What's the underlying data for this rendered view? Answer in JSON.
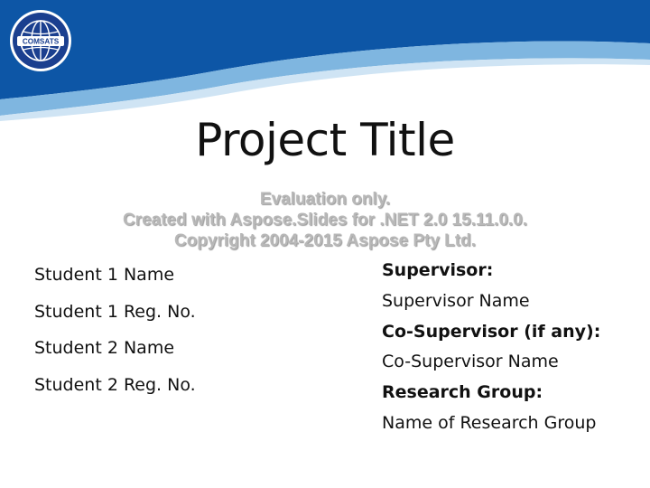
{
  "logo": {
    "text": "COMSATS",
    "icon": "globe-icon"
  },
  "colors": {
    "header_blue": "#0d56a6",
    "accent_blue": "#7fb6e0",
    "text": "#111111",
    "watermark": "#b8b8b8"
  },
  "slide": {
    "title": "Project Title"
  },
  "watermark": {
    "line1": "Evaluation only.",
    "line2": "Created with Aspose.Slides for .NET 2.0 15.11.0.0.",
    "line3": "Copyright 2004-2015 Aspose Pty Ltd."
  },
  "students": {
    "items": [
      "Student 1 Name",
      "Student 1 Reg. No.",
      "Student 2 Name",
      "Student 2 Reg. No."
    ]
  },
  "supervision": {
    "supervisor_label": "Supervisor:",
    "supervisor_value": "Supervisor Name",
    "cosupervisor_label": "Co-Supervisor (if any):",
    "cosupervisor_value": "Co-Supervisor Name",
    "group_label": "Research Group:",
    "group_value": "Name of Research Group"
  }
}
